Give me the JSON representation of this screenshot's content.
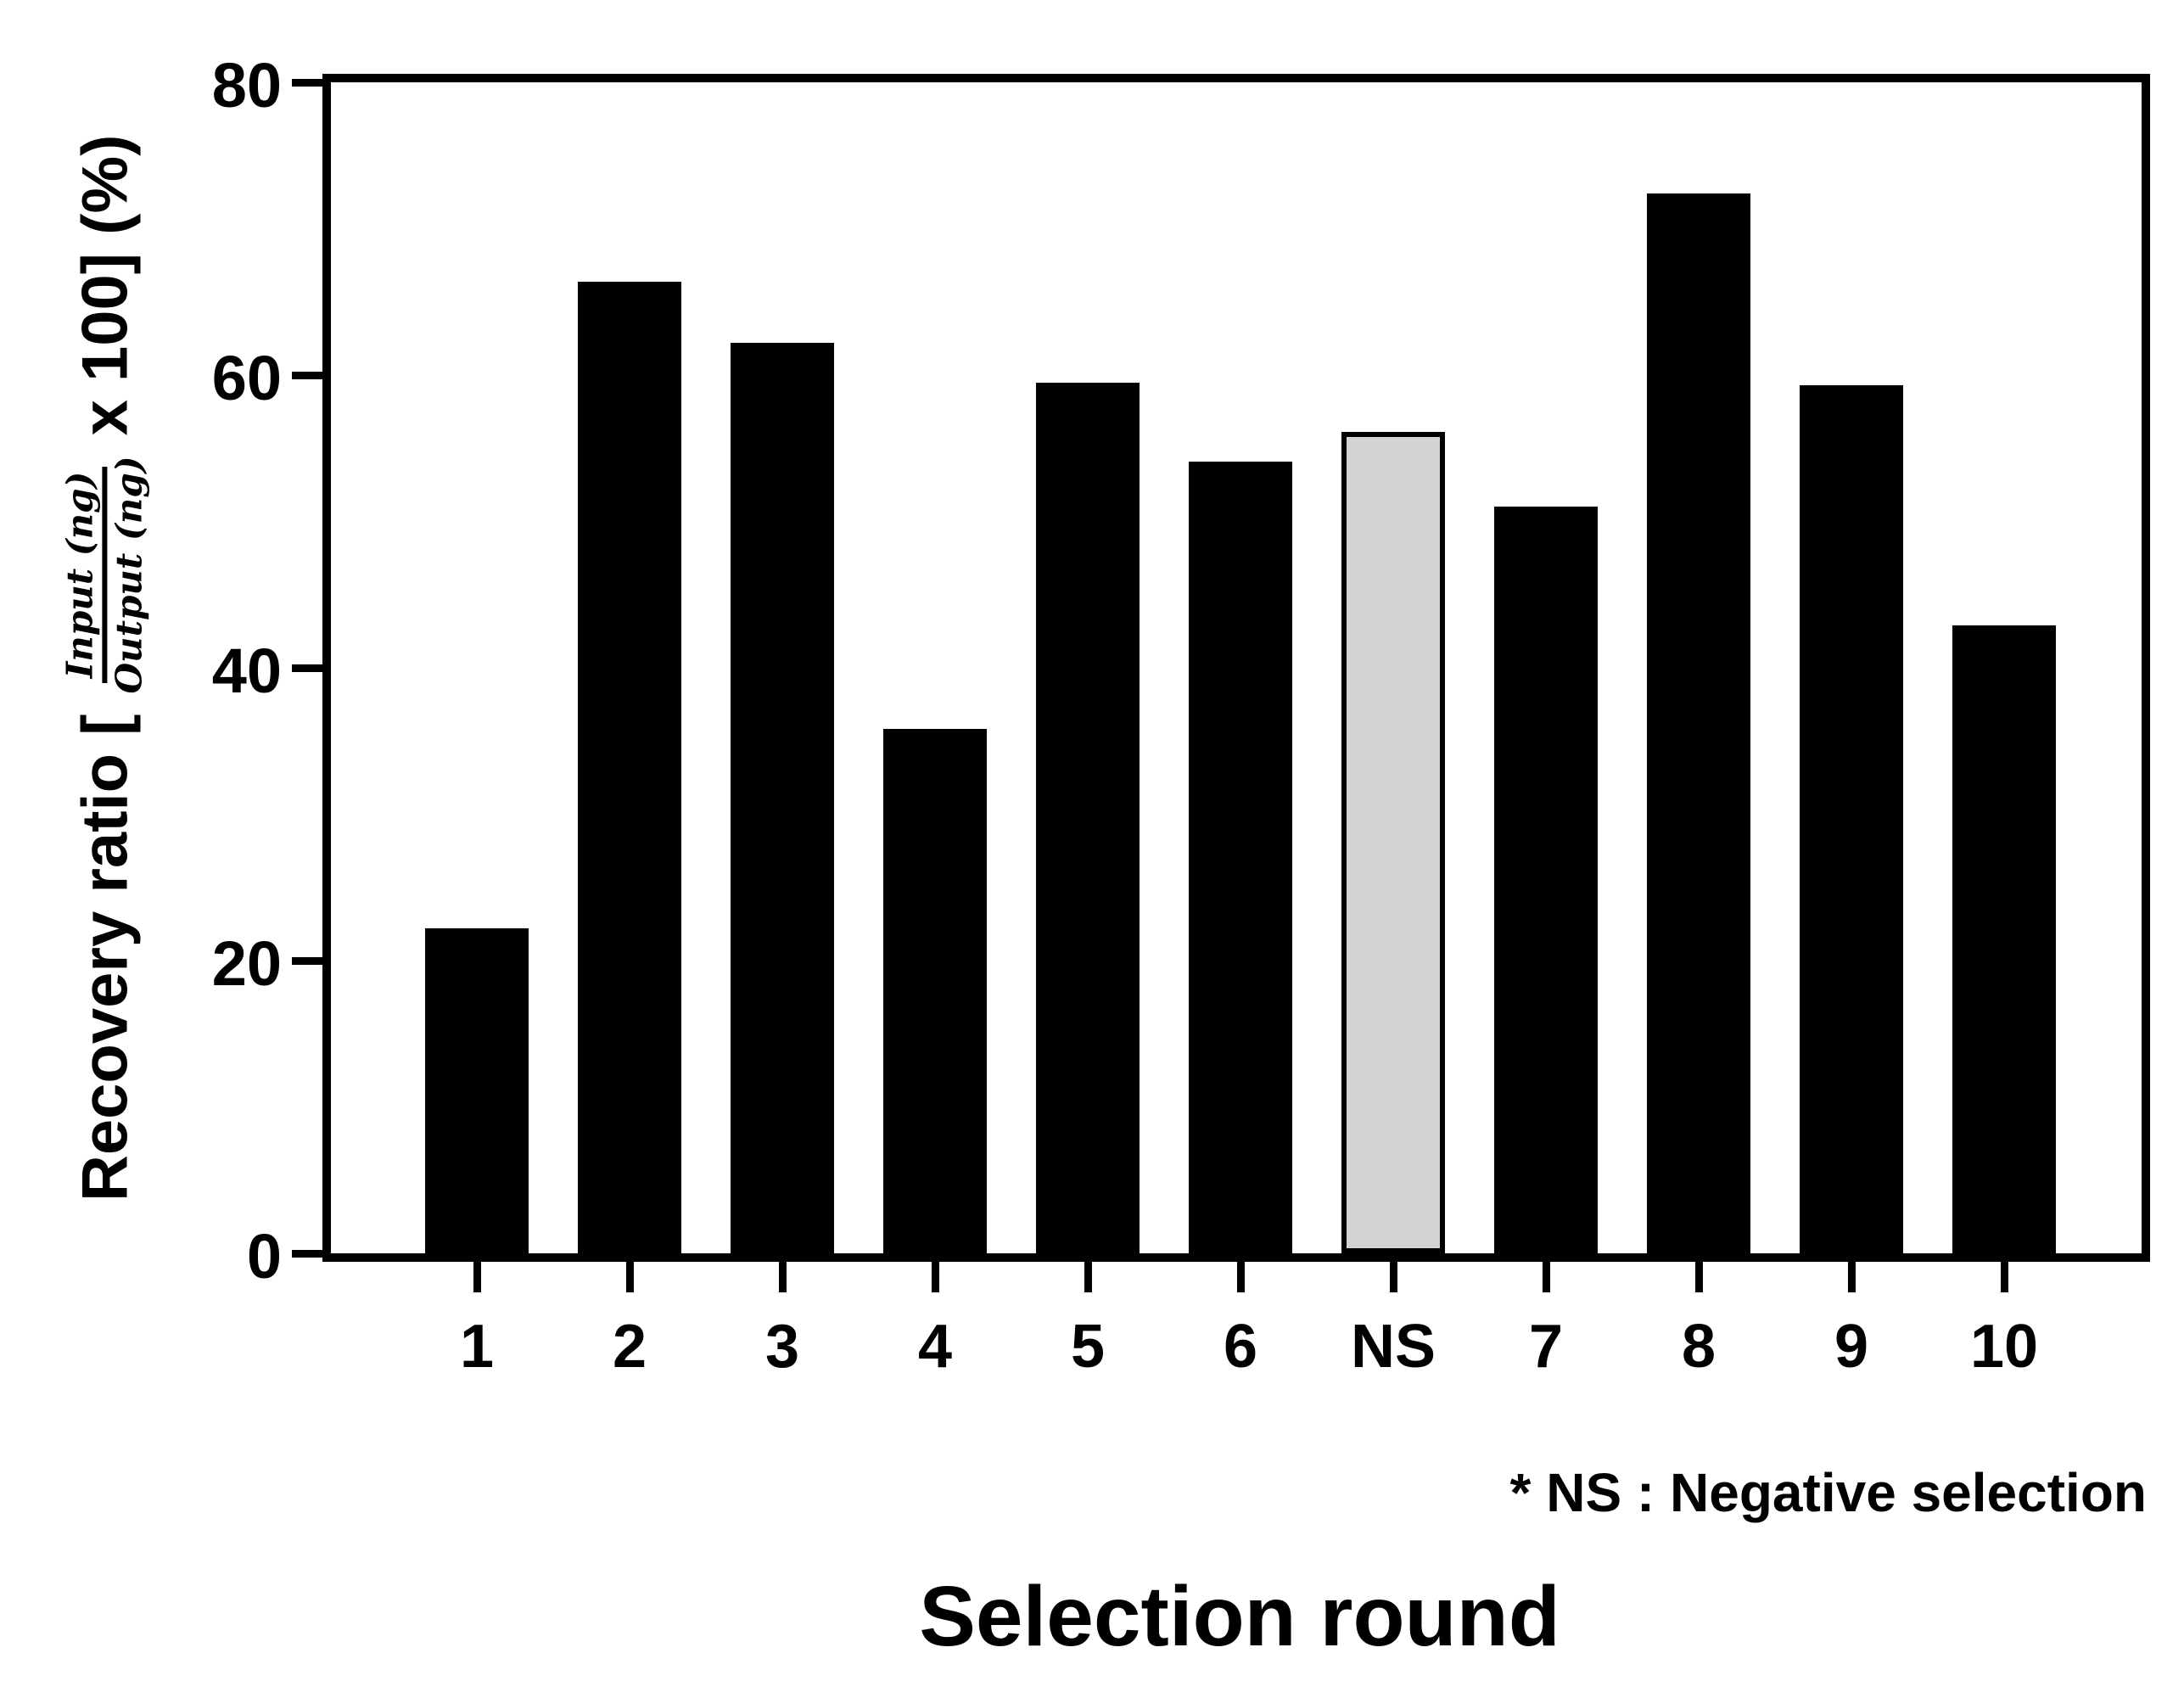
{
  "figure": {
    "background": "#ffffff",
    "bar_fill": "#000000",
    "axis_color": "#000000",
    "ns_bar_fill": "#d3d3d3",
    "ns_bar_border": "#000000"
  },
  "ylabel": {
    "prefix": "Recovery ratio  [",
    "fraction_numerator": "Input (ng)",
    "fraction_denominator": "Output (ng)",
    "suffix": "x 100] (%)"
  },
  "xlabel": "Selection round",
  "annotation": "* NS : Negative selection",
  "chart_data": {
    "type": "bar",
    "categories": [
      "1",
      "2",
      "3",
      "4",
      "5",
      "6",
      "NS",
      "7",
      "8",
      "9",
      "10"
    ],
    "values": [
      22.2,
      66.4,
      62.2,
      35.8,
      59.5,
      54.1,
      56.1,
      51.0,
      72.4,
      59.3,
      42.9
    ],
    "highlight_category": "NS",
    "highlight_fill": "#d3d3d3",
    "title": "",
    "xlabel": "Selection round",
    "ylabel": "Recovery ratio [ Input (ng) / Output (ng) x 100 ] (%)",
    "ylim": [
      0,
      80
    ],
    "yticks": [
      0,
      20,
      40,
      60,
      80
    ],
    "grid": false,
    "legend": null,
    "annotation": "* NS : Negative selection",
    "bar_color": "#000000"
  }
}
